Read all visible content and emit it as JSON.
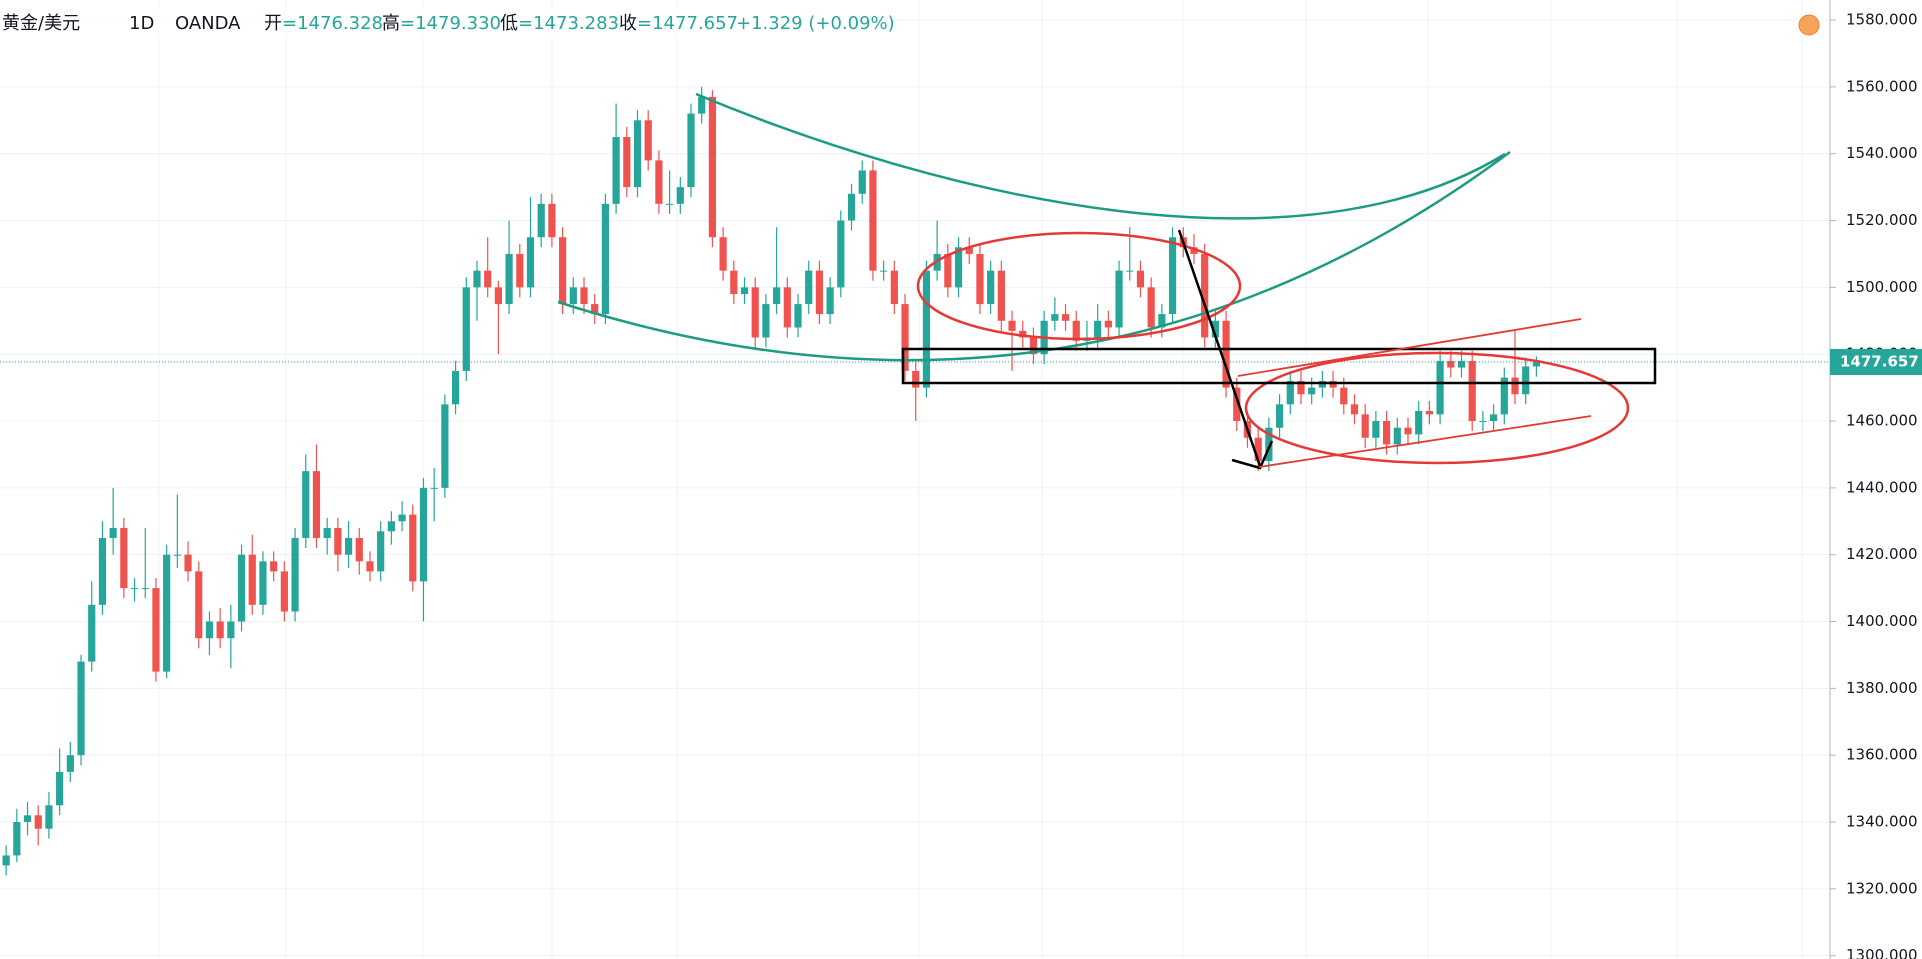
{
  "header": {
    "symbol": "黄金/美元",
    "interval": "1D",
    "source": "OANDA",
    "open": {
      "label": "开",
      "text": "=1476.328"
    },
    "high": {
      "label": "高",
      "text": "=1479.330"
    },
    "low": {
      "label": "低",
      "text": "=1473.283"
    },
    "close": {
      "label": "收",
      "text": "=1477.657"
    },
    "change": "+1.329 (+0.09%)"
  },
  "chart_data": {
    "type": "candlestick",
    "up_color": "#26a69a",
    "down_color": "#ef5350",
    "ylim": [
      1299,
      1586
    ],
    "yticks": [
      {
        "value": 1300,
        "label": "1300.000"
      },
      {
        "value": 1320,
        "label": "1320.000"
      },
      {
        "value": 1340,
        "label": "1340.000"
      },
      {
        "value": 1360,
        "label": "1360.000"
      },
      {
        "value": 1380,
        "label": "1380.000"
      },
      {
        "value": 1400,
        "label": "1400.000"
      },
      {
        "value": 1420,
        "label": "1420.000"
      },
      {
        "value": 1440,
        "label": "1440.000"
      },
      {
        "value": 1460,
        "label": "1460.000"
      },
      {
        "value": 1480,
        "label": "1480.000"
      },
      {
        "value": 1500,
        "label": "1500.000"
      },
      {
        "value": 1520,
        "label": "1520.000"
      },
      {
        "value": 1540,
        "label": "1540.000"
      },
      {
        "value": 1560,
        "label": "1560.000"
      },
      {
        "value": 1580,
        "label": "1580.000"
      }
    ],
    "ohlc": [
      [
        1327,
        1333,
        1324,
        1330
      ],
      [
        1330,
        1344,
        1328,
        1340
      ],
      [
        1340,
        1346,
        1336,
        1342
      ],
      [
        1342,
        1345,
        1333,
        1338
      ],
      [
        1338,
        1349,
        1335,
        1345
      ],
      [
        1345,
        1362,
        1342,
        1355
      ],
      [
        1355,
        1364,
        1352,
        1360
      ],
      [
        1360,
        1390,
        1357,
        1388
      ],
      [
        1388,
        1412,
        1385,
        1405
      ],
      [
        1405,
        1430,
        1402,
        1425
      ],
      [
        1425,
        1440,
        1420,
        1428
      ],
      [
        1428,
        1431,
        1407,
        1410
      ],
      [
        1410,
        1413,
        1406,
        1410
      ],
      [
        1410,
        1428,
        1407,
        1410
      ],
      [
        1410,
        1413,
        1382,
        1385
      ],
      [
        1385,
        1423,
        1383,
        1420
      ],
      [
        1420,
        1438,
        1416,
        1420
      ],
      [
        1420,
        1424,
        1412,
        1415
      ],
      [
        1415,
        1418,
        1392,
        1395
      ],
      [
        1395,
        1403,
        1390,
        1400
      ],
      [
        1400,
        1404,
        1392,
        1395
      ],
      [
        1395,
        1405,
        1386,
        1400
      ],
      [
        1400,
        1423,
        1397,
        1420
      ],
      [
        1420,
        1426,
        1402,
        1405
      ],
      [
        1405,
        1421,
        1402,
        1418
      ],
      [
        1418,
        1421,
        1412,
        1415
      ],
      [
        1415,
        1418,
        1400,
        1403
      ],
      [
        1403,
        1428,
        1400,
        1425
      ],
      [
        1425,
        1450,
        1422,
        1445
      ],
      [
        1445,
        1453,
        1422,
        1425
      ],
      [
        1425,
        1431,
        1420,
        1428
      ],
      [
        1428,
        1431,
        1415,
        1420
      ],
      [
        1420,
        1430,
        1416,
        1425
      ],
      [
        1425,
        1428,
        1414,
        1418
      ],
      [
        1418,
        1421,
        1412,
        1415
      ],
      [
        1415,
        1430,
        1412,
        1427
      ],
      [
        1427,
        1433,
        1423,
        1430
      ],
      [
        1430,
        1436,
        1427,
        1432
      ],
      [
        1432,
        1435,
        1409,
        1412
      ],
      [
        1412,
        1443,
        1400,
        1440
      ],
      [
        1440,
        1446,
        1430,
        1440
      ],
      [
        1440,
        1468,
        1437,
        1465
      ],
      [
        1465,
        1478,
        1462,
        1475
      ],
      [
        1475,
        1503,
        1472,
        1500
      ],
      [
        1500,
        1508,
        1490,
        1505
      ],
      [
        1505,
        1515,
        1497,
        1500
      ],
      [
        1500,
        1502,
        1480,
        1495
      ],
      [
        1495,
        1520,
        1492,
        1510
      ],
      [
        1510,
        1513,
        1497,
        1500
      ],
      [
        1500,
        1527,
        1497,
        1515
      ],
      [
        1515,
        1528,
        1512,
        1525
      ],
      [
        1525,
        1528,
        1512,
        1515
      ],
      [
        1515,
        1518,
        1492,
        1495
      ],
      [
        1495,
        1503,
        1492,
        1500
      ],
      [
        1500,
        1503,
        1492,
        1495
      ],
      [
        1495,
        1498,
        1489,
        1492
      ],
      [
        1492,
        1528,
        1489,
        1525
      ],
      [
        1525,
        1555,
        1522,
        1545
      ],
      [
        1545,
        1548,
        1527,
        1530
      ],
      [
        1530,
        1553,
        1527,
        1550
      ],
      [
        1550,
        1553,
        1535,
        1538
      ],
      [
        1538,
        1541,
        1522,
        1525
      ],
      [
        1525,
        1535,
        1522,
        1525
      ],
      [
        1525,
        1533,
        1522,
        1530
      ],
      [
        1530,
        1555,
        1527,
        1552
      ],
      [
        1552,
        1560,
        1549,
        1557
      ],
      [
        1557,
        1559,
        1512,
        1515
      ],
      [
        1515,
        1518,
        1502,
        1505
      ],
      [
        1505,
        1508,
        1495,
        1498
      ],
      [
        1498,
        1503,
        1495,
        1500
      ],
      [
        1500,
        1503,
        1482,
        1485
      ],
      [
        1485,
        1498,
        1482,
        1495
      ],
      [
        1495,
        1518,
        1492,
        1500
      ],
      [
        1500,
        1503,
        1485,
        1488
      ],
      [
        1488,
        1498,
        1485,
        1495
      ],
      [
        1495,
        1508,
        1492,
        1505
      ],
      [
        1505,
        1508,
        1489,
        1492
      ],
      [
        1492,
        1503,
        1489,
        1500
      ],
      [
        1500,
        1523,
        1497,
        1520
      ],
      [
        1520,
        1531,
        1517,
        1528
      ],
      [
        1528,
        1538,
        1525,
        1535
      ],
      [
        1535,
        1538,
        1502,
        1505
      ],
      [
        1505,
        1508,
        1502,
        1505
      ],
      [
        1505,
        1508,
        1492,
        1495
      ],
      [
        1495,
        1498,
        1472,
        1475
      ],
      [
        1475,
        1478,
        1460,
        1470
      ],
      [
        1470,
        1508,
        1467,
        1505
      ],
      [
        1505,
        1520,
        1502,
        1510
      ],
      [
        1510,
        1513,
        1497,
        1500
      ],
      [
        1500,
        1515,
        1497,
        1512
      ],
      [
        1512,
        1515,
        1507,
        1510
      ],
      [
        1510,
        1513,
        1492,
        1495
      ],
      [
        1495,
        1508,
        1492,
        1505
      ],
      [
        1505,
        1508,
        1487,
        1490
      ],
      [
        1490,
        1493,
        1475,
        1487
      ],
      [
        1487,
        1490,
        1482,
        1485
      ],
      [
        1485,
        1488,
        1477,
        1480
      ],
      [
        1480,
        1493,
        1477,
        1490
      ],
      [
        1490,
        1497,
        1487,
        1492
      ],
      [
        1492,
        1495,
        1487,
        1490
      ],
      [
        1490,
        1493,
        1481,
        1484
      ],
      [
        1484,
        1490,
        1481,
        1485
      ],
      [
        1485,
        1495,
        1482,
        1490
      ],
      [
        1490,
        1493,
        1485,
        1488
      ],
      [
        1488,
        1508,
        1485,
        1505
      ],
      [
        1505,
        1518,
        1502,
        1505
      ],
      [
        1505,
        1508,
        1497,
        1500
      ],
      [
        1500,
        1503,
        1485,
        1488
      ],
      [
        1488,
        1495,
        1485,
        1492
      ],
      [
        1492,
        1518,
        1489,
        1515
      ],
      [
        1515,
        1518,
        1509,
        1512
      ],
      [
        1512,
        1516,
        1507,
        1510
      ],
      [
        1510,
        1513,
        1482,
        1485
      ],
      [
        1485,
        1493,
        1482,
        1490
      ],
      [
        1490,
        1493,
        1467,
        1470
      ],
      [
        1470,
        1473,
        1457,
        1460
      ],
      [
        1460,
        1463,
        1452,
        1455
      ],
      [
        1455,
        1458,
        1445,
        1448
      ],
      [
        1448,
        1461,
        1445,
        1458
      ],
      [
        1458,
        1468,
        1455,
        1465
      ],
      [
        1465,
        1475,
        1462,
        1472
      ],
      [
        1472,
        1475,
        1465,
        1468
      ],
      [
        1468,
        1473,
        1465,
        1470
      ],
      [
        1470,
        1475,
        1467,
        1472
      ],
      [
        1472,
        1475,
        1467,
        1470
      ],
      [
        1470,
        1473,
        1462,
        1465
      ],
      [
        1465,
        1468,
        1459,
        1462
      ],
      [
        1462,
        1465,
        1452,
        1455
      ],
      [
        1455,
        1463,
        1452,
        1460
      ],
      [
        1460,
        1463,
        1450,
        1453
      ],
      [
        1453,
        1461,
        1450,
        1458
      ],
      [
        1458,
        1461,
        1453,
        1456
      ],
      [
        1456,
        1466,
        1453,
        1463
      ],
      [
        1463,
        1466,
        1459,
        1462
      ],
      [
        1462,
        1481,
        1459,
        1478
      ],
      [
        1478,
        1481,
        1473,
        1476
      ],
      [
        1476,
        1481,
        1473,
        1478
      ],
      [
        1478,
        1481,
        1457,
        1460
      ],
      [
        1460,
        1463,
        1457,
        1460
      ],
      [
        1460,
        1465,
        1457,
        1462
      ],
      [
        1462,
        1476,
        1459,
        1473
      ],
      [
        1473,
        1487,
        1465,
        1468
      ],
      [
        1468,
        1479,
        1465,
        1476.328
      ],
      [
        1476.328,
        1479.33,
        1473.283,
        1477.657
      ]
    ]
  }
}
